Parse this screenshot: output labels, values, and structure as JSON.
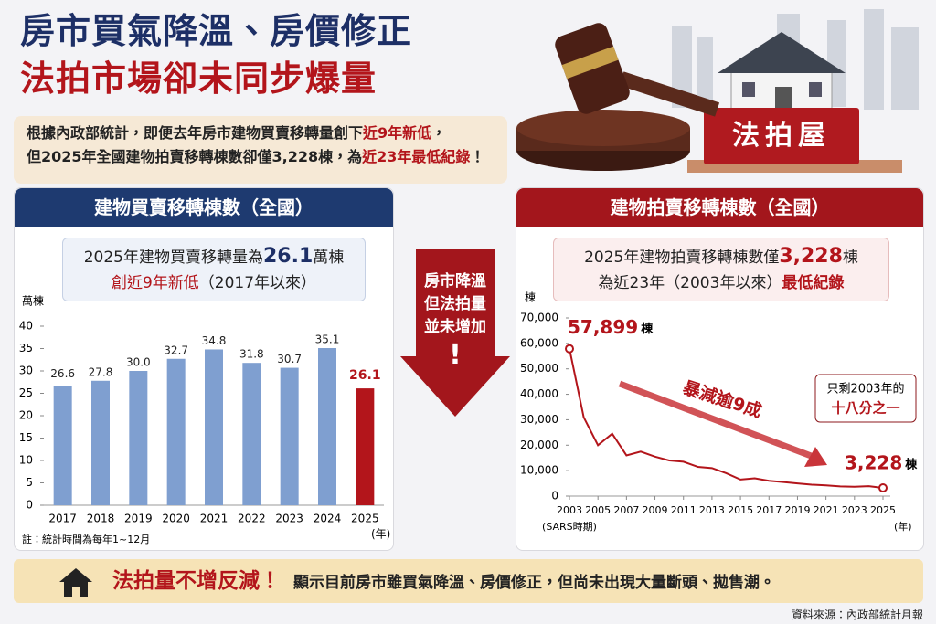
{
  "header": {
    "title_lines": [
      "房市買氣降溫、房價修正",
      "法拍市場卻未同步爆量"
    ]
  },
  "intro": {
    "lines": [
      [
        "根據內政部統計，即便去年房市建物買賣移轉量創下",
        "近9年新低",
        "，"
      ],
      [
        "但2025年全國建物拍賣移轉棟數卻僅3,228棟，為",
        "近23年最低紀錄",
        "！"
      ]
    ]
  },
  "image_label": "法拍屋",
  "middle_callout": {
    "lines": [
      "房市降溫",
      "但法拍量",
      "並未增加"
    ],
    "mark": "!"
  },
  "chart_data": [
    {
      "type": "bar",
      "title": "建物買賣移轉棟數（全國）",
      "callout": [
        [
          "2025年建物買賣移轉量為",
          "26.1",
          "萬棟"
        ],
        [
          "創近9年新低",
          "（2017年以來）"
        ]
      ],
      "y_label": "萬棟",
      "x_label": "(年)",
      "note": "註：統計時間為每年1~12月",
      "categories": [
        "2017",
        "2018",
        "2019",
        "2020",
        "2021",
        "2022",
        "2023",
        "2024",
        "2025"
      ],
      "values": [
        26.6,
        27.8,
        30.0,
        32.7,
        34.8,
        31.8,
        30.7,
        35.1,
        26.1
      ],
      "value_labels": [
        "26.6",
        "27.8",
        "30.0",
        "32.7",
        "34.8",
        "31.8",
        "30.7",
        "35.1",
        "26.1"
      ],
      "colors": [
        "#7f9fd0",
        "#7f9fd0",
        "#7f9fd0",
        "#7f9fd0",
        "#7f9fd0",
        "#7f9fd0",
        "#7f9fd0",
        "#7f9fd0",
        "#b3151b"
      ],
      "ylim": [
        0,
        40
      ],
      "yticks": [
        0,
        5,
        10,
        15,
        20,
        25,
        30,
        35,
        40
      ],
      "grid": false
    },
    {
      "type": "line",
      "title": "建物拍賣移轉棟數（全國）",
      "callout": [
        [
          "2025年建物拍賣移轉棟數僅",
          "3,228",
          "棟"
        ],
        [
          "為近23年（2003年以來）",
          "最低紀錄"
        ]
      ],
      "y_label": "棟",
      "x_label": "(年)",
      "x_note": "(SARS時期)",
      "annotation": "暴減逾9成",
      "note_box": [
        "只剩2003年的",
        "十八分之一"
      ],
      "x": [
        2003,
        2004,
        2005,
        2006,
        2007,
        2008,
        2009,
        2010,
        2011,
        2012,
        2013,
        2014,
        2015,
        2016,
        2017,
        2018,
        2019,
        2020,
        2021,
        2022,
        2023,
        2024,
        2025
      ],
      "values": [
        57899,
        31000,
        20000,
        24500,
        16000,
        17500,
        15500,
        14000,
        13500,
        11500,
        11000,
        9000,
        6500,
        7000,
        6000,
        5500,
        5000,
        4500,
        4200,
        3800,
        3700,
        3900,
        3228
      ],
      "value_labels": [
        "57,899",
        null,
        null,
        null,
        null,
        null,
        null,
        null,
        null,
        null,
        null,
        null,
        null,
        null,
        null,
        null,
        null,
        null,
        null,
        null,
        null,
        null,
        "3,228"
      ],
      "value_label_unit": "棟",
      "color": "#b3151b",
      "xlim": [
        2003,
        2025
      ],
      "xticks": [
        2003,
        2005,
        2007,
        2009,
        2011,
        2013,
        2015,
        2017,
        2019,
        2021,
        2023,
        2025
      ],
      "ylim": [
        0,
        70000
      ],
      "yticks": [
        0,
        {
          "value": 10000,
          "label": "10,000"
        },
        {
          "value": 20000,
          "label": "20,000"
        },
        {
          "value": 30000,
          "label": "30,000"
        },
        {
          "value": 40000,
          "label": "40,000"
        },
        {
          "value": 50000,
          "label": "50,000"
        },
        {
          "value": 60000,
          "label": "60,000"
        },
        {
          "value": 70000,
          "label": "70,000"
        }
      ],
      "grid": false
    }
  ],
  "footer": {
    "headline": "法拍量不增反減！",
    "text": "顯示目前房市雖買氣降溫、房價修正，但尚未出現大量斷頭、拋售潮。",
    "source": "資料來源：內政部統計月報"
  }
}
